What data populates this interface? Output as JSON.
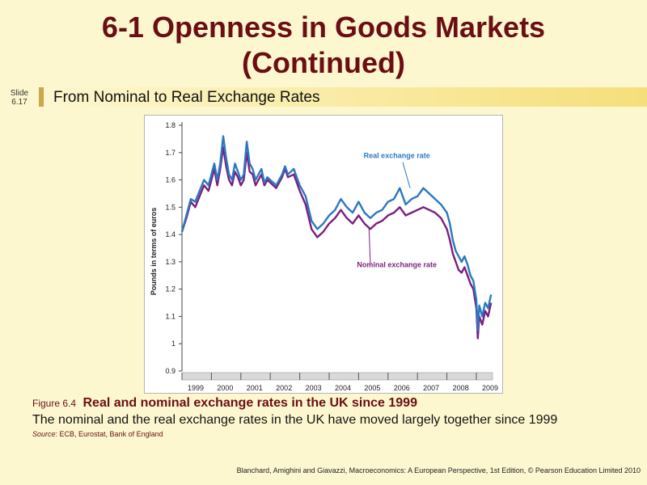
{
  "slide": {
    "title_line1": "6-1  Openness in Goods Markets",
    "title_line2": "(Continued)",
    "slide_label": "Slide",
    "slide_number": "6.17",
    "subtitle": "From Nominal to Real Exchange  Rates"
  },
  "caption": {
    "figure_label": "Figure 6.4",
    "figure_title": "Real and nominal exchange rates in the UK since 1999",
    "description": "The nominal  and the real exchange  rates in the UK have  moved largely together since 1999",
    "source_label": "Source",
    "source_text": ": ECB, Eurostat, Bank of England",
    "credit": "Blanchard, Amighini and Giavazzi, Macroeconomics: A European Perspective, 1st Edition, © Pearson Education Limited 2010"
  },
  "colors": {
    "real": "#2a78c0",
    "nominal": "#7a1f7e",
    "title": "#6b0e14"
  },
  "chart_data": {
    "type": "line",
    "title": "",
    "xlabel": "",
    "ylabel": "Pounds in terms of euros",
    "ylim": [
      0.9,
      1.8
    ],
    "y_ticks": [
      "0.9",
      "1",
      "1.1",
      "1.2",
      "1.3",
      "1.4",
      "1.5",
      "1.6",
      "1.7",
      "1.8"
    ],
    "x_ticks": [
      "1999",
      "2000",
      "2001",
      "2002",
      "2003",
      "2004",
      "2005",
      "2006",
      "2007",
      "2008",
      "2009"
    ],
    "xlim": [
      1999,
      2009.55
    ],
    "series": [
      {
        "name": "Real exchange rate",
        "x": [
          1999.0,
          1999.15,
          1999.3,
          1999.45,
          1999.6,
          1999.75,
          1999.9,
          2000.0,
          2000.1,
          2000.2,
          2000.3,
          2000.4,
          2000.5,
          2000.6,
          2000.7,
          2000.8,
          2000.9,
          2001.0,
          2001.1,
          2001.2,
          2001.3,
          2001.4,
          2001.5,
          2001.6,
          2001.7,
          2001.8,
          2001.9,
          2002.0,
          2002.2,
          2002.4,
          2002.5,
          2002.6,
          2002.8,
          2003.0,
          2003.2,
          2003.4,
          2003.6,
          2003.8,
          2004.0,
          2004.2,
          2004.4,
          2004.6,
          2004.8,
          2005.0,
          2005.2,
          2005.4,
          2005.6,
          2005.8,
          2006.0,
          2006.2,
          2006.4,
          2006.6,
          2006.8,
          2007.0,
          2007.2,
          2007.4,
          2007.6,
          2007.8,
          2008.0,
          2008.1,
          2008.2,
          2008.3,
          2008.4,
          2008.5,
          2008.6,
          2008.7,
          2008.8,
          2008.9,
          2009.0,
          2009.05,
          2009.1,
          2009.2,
          2009.3,
          2009.4,
          2009.5
        ],
        "y": [
          1.41,
          1.47,
          1.53,
          1.52,
          1.56,
          1.6,
          1.58,
          1.62,
          1.66,
          1.6,
          1.66,
          1.76,
          1.68,
          1.62,
          1.6,
          1.66,
          1.63,
          1.6,
          1.62,
          1.74,
          1.66,
          1.64,
          1.6,
          1.62,
          1.64,
          1.59,
          1.61,
          1.6,
          1.58,
          1.62,
          1.65,
          1.62,
          1.64,
          1.58,
          1.54,
          1.45,
          1.42,
          1.44,
          1.47,
          1.49,
          1.53,
          1.5,
          1.48,
          1.52,
          1.48,
          1.46,
          1.48,
          1.49,
          1.52,
          1.53,
          1.57,
          1.51,
          1.53,
          1.54,
          1.57,
          1.55,
          1.53,
          1.51,
          1.48,
          1.44,
          1.38,
          1.34,
          1.32,
          1.3,
          1.32,
          1.29,
          1.25,
          1.23,
          1.16,
          1.05,
          1.14,
          1.1,
          1.15,
          1.13,
          1.18
        ]
      },
      {
        "name": "Nominal exchange rate",
        "x": [
          1999.0,
          1999.15,
          1999.3,
          1999.45,
          1999.6,
          1999.75,
          1999.9,
          2000.0,
          2000.1,
          2000.2,
          2000.3,
          2000.4,
          2000.5,
          2000.6,
          2000.7,
          2000.8,
          2000.9,
          2001.0,
          2001.1,
          2001.2,
          2001.3,
          2001.4,
          2001.5,
          2001.6,
          2001.7,
          2001.8,
          2001.9,
          2002.0,
          2002.2,
          2002.4,
          2002.5,
          2002.6,
          2002.8,
          2003.0,
          2003.2,
          2003.4,
          2003.6,
          2003.8,
          2004.0,
          2004.2,
          2004.4,
          2004.6,
          2004.8,
          2005.0,
          2005.2,
          2005.4,
          2005.6,
          2005.8,
          2006.0,
          2006.2,
          2006.4,
          2006.6,
          2006.8,
          2007.0,
          2007.2,
          2007.4,
          2007.6,
          2007.8,
          2008.0,
          2008.1,
          2008.2,
          2008.3,
          2008.4,
          2008.5,
          2008.6,
          2008.7,
          2008.8,
          2008.9,
          2009.0,
          2009.05,
          2009.1,
          2009.2,
          2009.3,
          2009.4,
          2009.5
        ],
        "y": [
          1.41,
          1.46,
          1.52,
          1.5,
          1.54,
          1.58,
          1.56,
          1.6,
          1.64,
          1.58,
          1.64,
          1.72,
          1.65,
          1.6,
          1.58,
          1.63,
          1.61,
          1.58,
          1.6,
          1.7,
          1.63,
          1.62,
          1.58,
          1.6,
          1.62,
          1.58,
          1.6,
          1.59,
          1.57,
          1.61,
          1.64,
          1.61,
          1.62,
          1.56,
          1.51,
          1.42,
          1.39,
          1.41,
          1.44,
          1.46,
          1.49,
          1.46,
          1.44,
          1.47,
          1.44,
          1.42,
          1.44,
          1.45,
          1.47,
          1.48,
          1.5,
          1.47,
          1.48,
          1.49,
          1.5,
          1.49,
          1.48,
          1.46,
          1.42,
          1.38,
          1.33,
          1.3,
          1.27,
          1.26,
          1.28,
          1.25,
          1.22,
          1.2,
          1.13,
          1.02,
          1.1,
          1.07,
          1.12,
          1.1,
          1.15
        ]
      }
    ],
    "annotations": [
      {
        "text": "Real exchange rate",
        "x": 2006.3,
        "y": 1.68
      },
      {
        "text": "Nominal exchange rate",
        "x": 2006.3,
        "y": 1.28
      }
    ]
  }
}
